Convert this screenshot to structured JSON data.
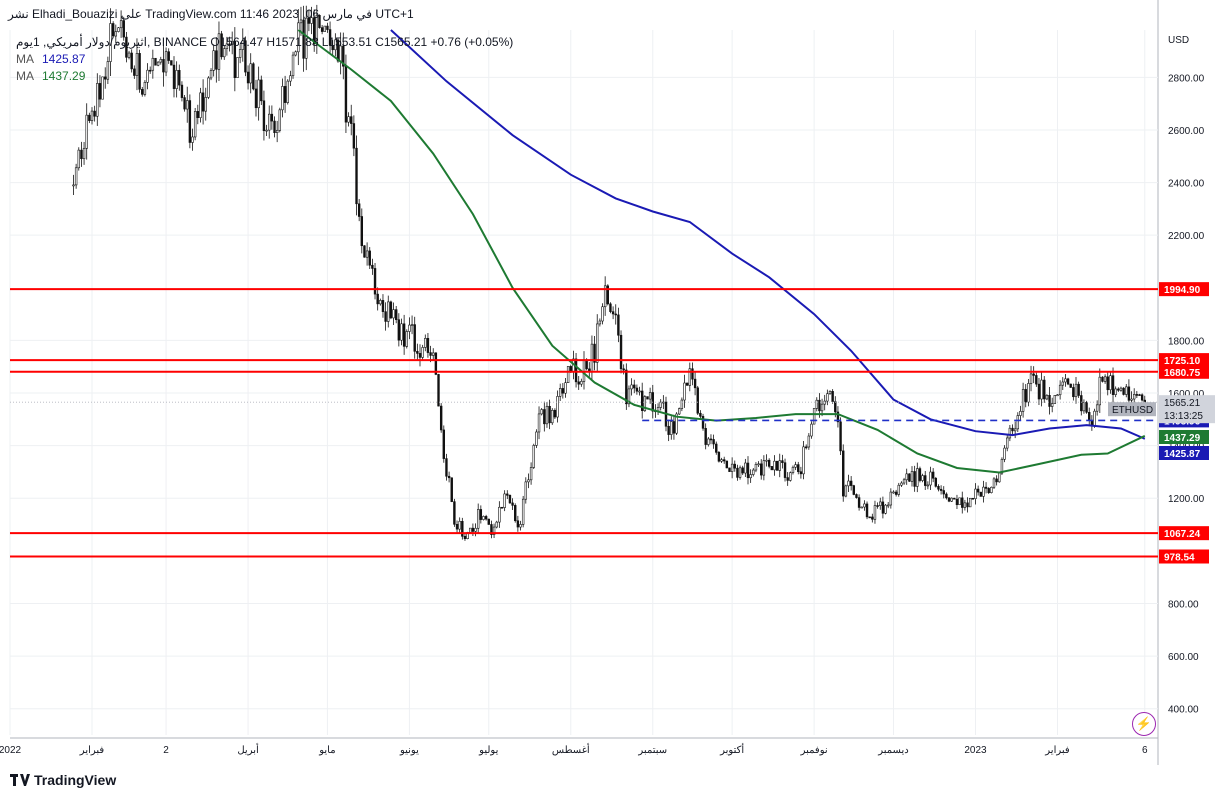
{
  "header": {
    "title": "نشر Elhadi_Bouazizi على TradingView.com 11:46 2023 ,06 في مارس UTC+1",
    "symbol_line": "اثيريوم/دولار أمريكي, 1يوم, BINANCE  O1564.47  H1571.83  L1553.51  C1565.21  +0.76 (+0.05%)",
    "ma1_label": "MA",
    "ma1_value": "1425.87",
    "ma2_label": "MA",
    "ma2_value": "1437.29"
  },
  "footer": {
    "brand": "TradingView"
  },
  "chart_data": {
    "type": "candlestick",
    "symbol": "ETHUSD",
    "currency": "USD",
    "ylim": [
      300,
      2980
    ],
    "y_ticks": [
      "2800.00",
      "2600.00",
      "2400.00",
      "2200.00",
      "1800.00",
      "1600.00",
      "1400.00",
      "1200.00",
      "800.00",
      "600.00",
      "400.00"
    ],
    "x_ticks": [
      "2022",
      "فبراير",
      "2",
      "أبريل",
      "مايو",
      "يونيو",
      "يوليو",
      "أغسطس",
      "سبتمبر",
      "أكتوبر",
      "نوفمبر",
      "ديسمبر",
      "2023",
      "فبراير",
      "6"
    ],
    "x_tick_values": [
      "2022-01-01",
      "2022-02-01",
      "2022-03-01",
      "2022-04-01",
      "2022-05-01",
      "2022-06-01",
      "2022-07-01",
      "2022-08-01",
      "2022-09-01",
      "2022-10-01",
      "2022-11-01",
      "2022-12-01",
      "2023-01-01",
      "2023-02-01",
      "2023-03-06"
    ],
    "x_range": [
      "2022-01-01",
      "2023-03-11"
    ],
    "horizontal_lines": [
      {
        "value": 1994.9,
        "label": "1994.90",
        "color": "#ff0000"
      },
      {
        "value": 1725.1,
        "label": "1725.10",
        "color": "#ff0000"
      },
      {
        "value": 1680.75,
        "label": "1680.75",
        "color": "#ff0000"
      },
      {
        "value": 1067.24,
        "label": "1067.24",
        "color": "#ff0000"
      },
      {
        "value": 978.54,
        "label": "978.54",
        "color": "#ff0000"
      }
    ],
    "dashed_line": {
      "value": 1495.96,
      "label": "1495.96",
      "color": "#2030c8",
      "start": "2022-08-28"
    },
    "last_price": {
      "value": 1565.21,
      "label": "1565.21",
      "symbol_label": "ETHUSD",
      "countdown": "13:13:25"
    },
    "ma_series": [
      {
        "name": "MA",
        "color": "#1a1ab4",
        "last": 1425.87,
        "label": "1425.87",
        "points": [
          [
            "2022-05-25",
            2980
          ],
          [
            "2022-06-15",
            2785
          ],
          [
            "2022-07-10",
            2580
          ],
          [
            "2022-08-01",
            2430
          ],
          [
            "2022-08-18",
            2340
          ],
          [
            "2022-09-01",
            2290
          ],
          [
            "2022-09-15",
            2250
          ],
          [
            "2022-10-01",
            2130
          ],
          [
            "2022-10-15",
            2040
          ],
          [
            "2022-11-01",
            1900
          ],
          [
            "2022-11-15",
            1760
          ],
          [
            "2022-12-01",
            1575
          ],
          [
            "2022-12-15",
            1500
          ],
          [
            "2023-01-01",
            1455
          ],
          [
            "2023-01-15",
            1440
          ],
          [
            "2023-01-29",
            1465
          ],
          [
            "2023-02-12",
            1478
          ],
          [
            "2023-02-25",
            1465
          ],
          [
            "2023-03-06",
            1426
          ]
        ]
      },
      {
        "name": "MA",
        "color": "#1e7a32",
        "last": 1437.29,
        "label": "1437.29",
        "points": [
          [
            "2022-04-20",
            2980
          ],
          [
            "2022-05-10",
            2830
          ],
          [
            "2022-05-25",
            2710
          ],
          [
            "2022-06-10",
            2510
          ],
          [
            "2022-06-25",
            2280
          ],
          [
            "2022-07-10",
            2000
          ],
          [
            "2022-07-25",
            1780
          ],
          [
            "2022-08-10",
            1640
          ],
          [
            "2022-08-25",
            1555
          ],
          [
            "2022-09-10",
            1510
          ],
          [
            "2022-09-25",
            1495
          ],
          [
            "2022-10-10",
            1505
          ],
          [
            "2022-10-25",
            1520
          ],
          [
            "2022-11-10",
            1520
          ],
          [
            "2022-11-25",
            1460
          ],
          [
            "2022-12-10",
            1370
          ],
          [
            "2022-12-25",
            1315
          ],
          [
            "2023-01-10",
            1298
          ],
          [
            "2023-01-25",
            1330
          ],
          [
            "2023-02-10",
            1365
          ],
          [
            "2023-02-20",
            1370
          ],
          [
            "2023-03-06",
            1437
          ]
        ]
      }
    ],
    "candles_close": [
      [
        "2022-01-25",
        2450
      ],
      [
        "2022-02-02",
        2680
      ],
      [
        "2022-02-10",
        3010
      ],
      [
        "2022-02-20",
        2750
      ],
      [
        "2022-03-01",
        2920
      ],
      [
        "2022-03-10",
        2590
      ],
      [
        "2022-03-20",
        2900
      ],
      [
        "2022-03-30",
        2870
      ],
      [
        "2022-04-10",
        2580
      ],
      [
        "2022-04-20",
        2940
      ],
      [
        "2022-05-01",
        3000
      ],
      [
        "2022-05-06",
        2840
      ],
      [
        "2022-05-11",
        2480
      ],
      [
        "2022-05-15",
        2120
      ],
      [
        "2022-05-20",
        1980
      ],
      [
        "2022-05-28",
        1840
      ],
      [
        "2022-06-05",
        1790
      ],
      [
        "2022-06-10",
        1780
      ],
      [
        "2022-06-13",
        1440
      ],
      [
        "2022-06-18",
        1120
      ],
      [
        "2022-06-22",
        1060
      ],
      [
        "2022-06-28",
        1140
      ],
      [
        "2022-07-03",
        1070
      ],
      [
        "2022-07-08",
        1230
      ],
      [
        "2022-07-12",
        1060
      ],
      [
        "2022-07-16",
        1300
      ],
      [
        "2022-07-21",
        1530
      ],
      [
        "2022-07-26",
        1520
      ],
      [
        "2022-07-31",
        1700
      ],
      [
        "2022-08-05",
        1660
      ],
      [
        "2022-08-10",
        1760
      ],
      [
        "2022-08-14",
        1960
      ],
      [
        "2022-08-18",
        1840
      ],
      [
        "2022-08-22",
        1600
      ],
      [
        "2022-08-28",
        1580
      ],
      [
        "2022-09-03",
        1570
      ],
      [
        "2022-09-08",
        1460
      ],
      [
        "2022-09-12",
        1560
      ],
      [
        "2022-09-15",
        1660
      ],
      [
        "2022-09-20",
        1450
      ],
      [
        "2022-09-25",
        1360
      ],
      [
        "2022-10-01",
        1290
      ],
      [
        "2022-10-08",
        1320
      ],
      [
        "2022-10-15",
        1310
      ],
      [
        "2022-10-22",
        1300
      ],
      [
        "2022-10-27",
        1320
      ],
      [
        "2022-11-01",
        1540
      ],
      [
        "2022-11-06",
        1620
      ],
      [
        "2022-11-09",
        1560
      ],
      [
        "2022-11-12",
        1250
      ],
      [
        "2022-11-16",
        1210
      ],
      [
        "2022-11-22",
        1130
      ],
      [
        "2022-11-28",
        1180
      ],
      [
        "2022-12-05",
        1260
      ],
      [
        "2022-12-10",
        1280
      ],
      [
        "2022-12-15",
        1270
      ],
      [
        "2022-12-20",
        1190
      ],
      [
        "2022-12-25",
        1200
      ],
      [
        "2022-12-31",
        1200
      ],
      [
        "2023-01-05",
        1210
      ],
      [
        "2023-01-10",
        1300
      ],
      [
        "2023-01-14",
        1450
      ],
      [
        "2023-01-18",
        1560
      ],
      [
        "2023-01-22",
        1630
      ],
      [
        "2023-01-27",
        1600
      ],
      [
        "2023-02-01",
        1590
      ],
      [
        "2023-02-05",
        1640
      ],
      [
        "2023-02-10",
        1560
      ],
      [
        "2023-02-14",
        1510
      ],
      [
        "2023-02-18",
        1650
      ],
      [
        "2023-02-22",
        1640
      ],
      [
        "2023-02-26",
        1600
      ],
      [
        "2023-03-02",
        1630
      ],
      [
        "2023-03-06",
        1565
      ]
    ]
  }
}
